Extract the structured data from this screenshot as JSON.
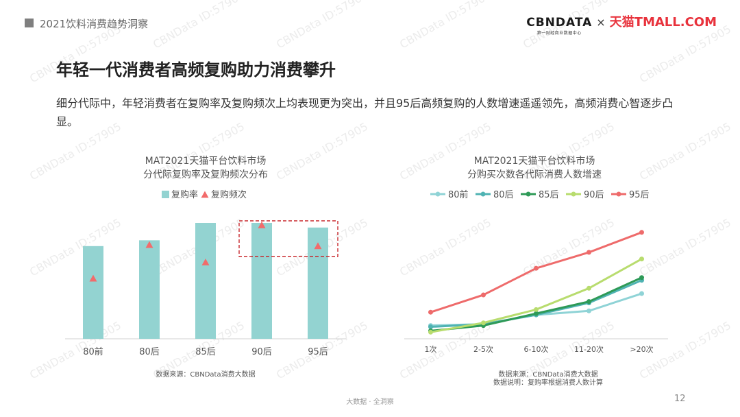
{
  "header": {
    "report_title": "2021饮料消费趋势洞察",
    "logo_cbn": "CBNDATA",
    "logo_cbn_sub": "第一财经商业数据中心",
    "logo_x": "×",
    "logo_tmall": "天猫TMALL.COM"
  },
  "page_heading": "年轻一代消费者高频复购助力消费攀升",
  "description": "细分代际中，年轻消费者在复购率及复购频次上均表现更为突出，并且95后高频复购的人数增速遥遥领先，高频消费心智逐步凸显。",
  "watermark": "CBNData ID:57905",
  "chart_data": [
    {
      "type": "bar",
      "title": [
        "MAT2021天猫平台饮料市场",
        "分代际复购率及复购频次分布"
      ],
      "categories": [
        "80前",
        "80后",
        "85后",
        "90后",
        "95后"
      ],
      "series": [
        {
          "name": "复购率",
          "kind": "bar",
          "color": "#93d3d1",
          "values": [
            0.8,
            0.85,
            1.0,
            1.0,
            0.96
          ]
        },
        {
          "name": "复购频次",
          "kind": "triangle",
          "color": "#f26b6b",
          "values": [
            0.52,
            0.81,
            0.66,
            0.98,
            0.8
          ]
        }
      ],
      "ylim": [
        0,
        1
      ],
      "grid": false,
      "legend": "top",
      "highlight": [
        "90后",
        "95后"
      ],
      "source": "数据来源：CBNData消费大数据"
    },
    {
      "type": "line",
      "title": [
        "MAT2021天猫平台饮料市场",
        "分购买次数各代际消费人数增速"
      ],
      "categories": [
        "1次",
        "2-5次",
        "6-10次",
        "11-20次",
        ">20次"
      ],
      "series": [
        {
          "name": "80前",
          "color": "#8fd3d6",
          "values": [
            0.1,
            0.11,
            0.18,
            0.21,
            0.34
          ]
        },
        {
          "name": "80后",
          "color": "#4fb3b3",
          "values": [
            0.09,
            0.11,
            0.18,
            0.27,
            0.44
          ]
        },
        {
          "name": "85后",
          "color": "#2e9a57",
          "values": [
            0.06,
            0.1,
            0.19,
            0.28,
            0.46
          ]
        },
        {
          "name": "90后",
          "color": "#b8dc6e",
          "values": [
            0.05,
            0.12,
            0.22,
            0.38,
            0.6
          ]
        },
        {
          "name": "95后",
          "color": "#ee6b6b",
          "values": [
            0.2,
            0.33,
            0.53,
            0.65,
            0.8
          ]
        }
      ],
      "ylim": [
        0,
        1
      ],
      "grid": false,
      "legend": "top",
      "source": [
        "数据来源：CBNData消费大数据",
        "数据说明：复购率根据消费人数计算"
      ]
    }
  ],
  "footer": {
    "text": "大数据 · 全洞察",
    "page_number": "12"
  }
}
